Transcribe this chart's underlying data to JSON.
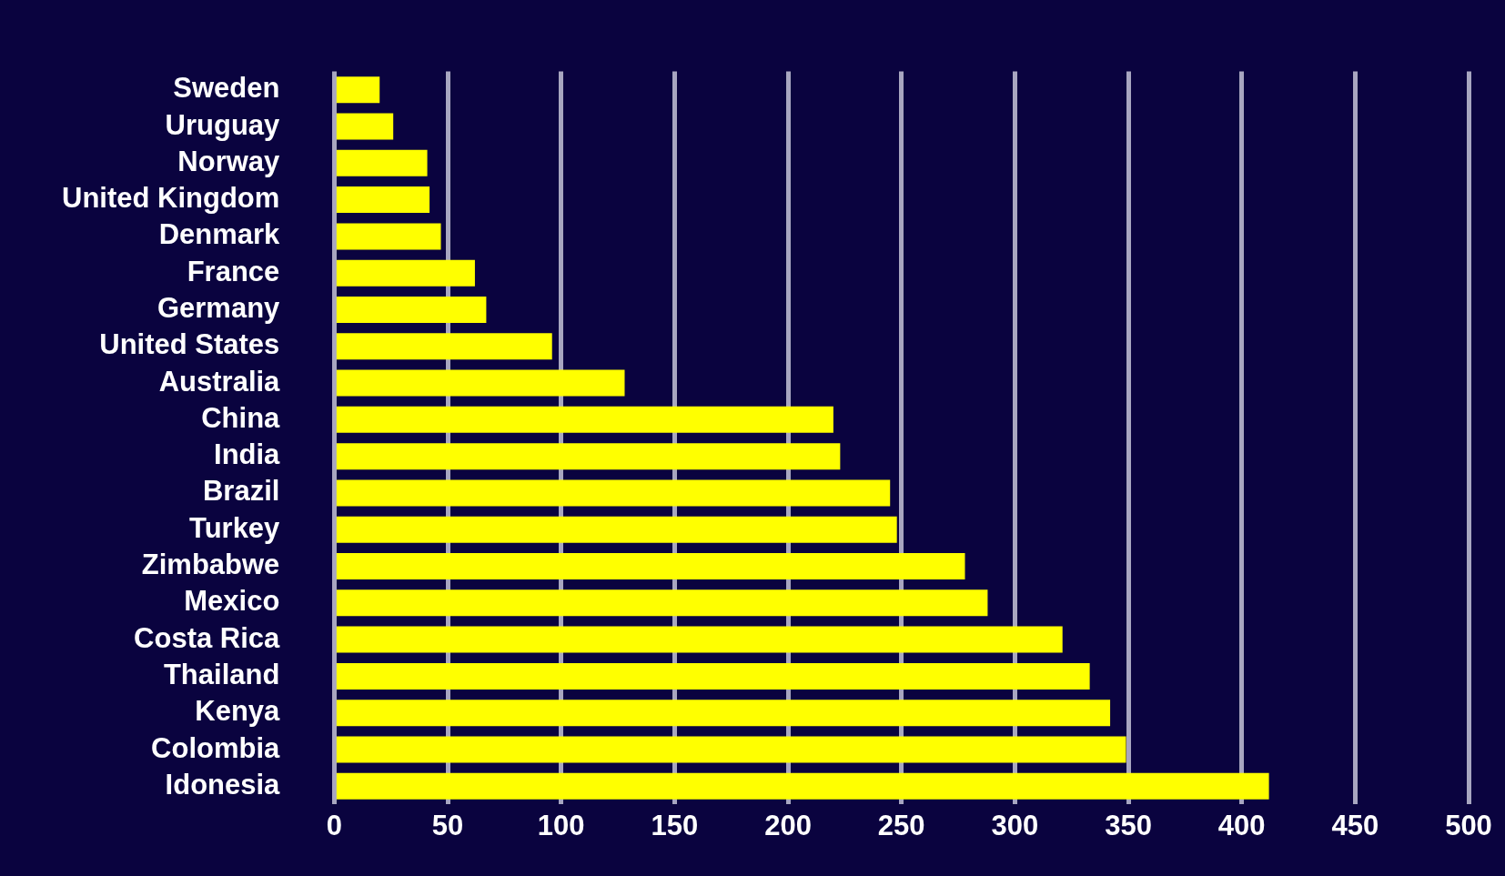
{
  "chart_data": {
    "type": "bar",
    "orientation": "horizontal",
    "categories": [
      "Sweden",
      "Uruguay",
      "Norway",
      "United Kingdom",
      "Denmark",
      "France",
      "Germany",
      "United States",
      "Australia",
      "China",
      "India",
      "Brazil",
      "Turkey",
      "Zimbabwe",
      "Mexico",
      "Costa Rica",
      "Thailand",
      "Kenya",
      "Colombia",
      "Idonesia"
    ],
    "values": [
      20,
      26,
      41,
      42,
      47,
      62,
      67,
      96,
      128,
      220,
      223,
      245,
      248,
      278,
      288,
      321,
      333,
      342,
      349,
      412
    ],
    "color": "#ffff00",
    "xlim": [
      0,
      500
    ],
    "xticks": [
      0,
      50,
      100,
      150,
      200,
      250,
      300,
      350,
      400,
      450,
      500
    ],
    "grid": "x",
    "legend": false
  }
}
